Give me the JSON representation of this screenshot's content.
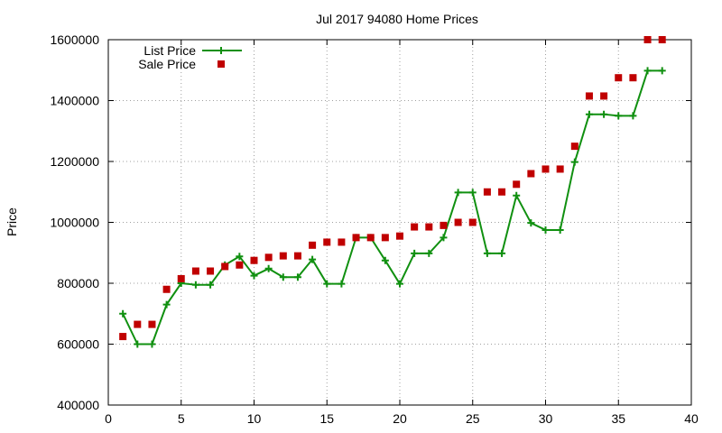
{
  "chart_data": {
    "type": "scatter",
    "title": "Jul 2017 94080 Home Prices",
    "xlabel": "",
    "ylabel": "Price",
    "xlim": [
      0,
      40
    ],
    "ylim": [
      400000,
      1600000
    ],
    "x_ticks": [
      0,
      5,
      10,
      15,
      20,
      25,
      30,
      35,
      40
    ],
    "y_ticks": [
      400000,
      600000,
      800000,
      1000000,
      1200000,
      1400000,
      1600000
    ],
    "grid": true,
    "legend_position": "top-left",
    "series": [
      {
        "name": "List Price",
        "style": "line-with-plus-markers",
        "color": "#109010",
        "x": [
          1,
          2,
          3,
          4,
          5,
          6,
          7,
          8,
          9,
          10,
          11,
          12,
          13,
          14,
          15,
          16,
          17,
          18,
          19,
          20,
          21,
          22,
          23,
          24,
          25,
          26,
          27,
          28,
          29,
          30,
          31,
          32,
          33,
          34,
          35,
          36,
          37,
          38
        ],
        "y": [
          700000,
          600000,
          600000,
          730000,
          800000,
          795000,
          795000,
          860000,
          888000,
          825000,
          848000,
          820000,
          820000,
          878000,
          798000,
          798000,
          950000,
          950000,
          875000,
          798000,
          898000,
          898000,
          950000,
          1098000,
          1098000,
          898000,
          898000,
          1088000,
          998000,
          975000,
          975000,
          1198000,
          1355000,
          1355000,
          1350000,
          1350000,
          1498000,
          1498000
        ]
      },
      {
        "name": "Sale Price",
        "style": "square-markers",
        "color": "#c00000",
        "x": [
          1,
          2,
          3,
          4,
          5,
          6,
          7,
          8,
          9,
          10,
          11,
          12,
          13,
          14,
          15,
          16,
          17,
          18,
          19,
          20,
          21,
          22,
          23,
          24,
          25,
          26,
          27,
          28,
          29,
          30,
          31,
          32,
          33,
          34,
          35,
          36,
          37,
          38
        ],
        "y": [
          625000,
          665000,
          665000,
          780000,
          815000,
          840000,
          840000,
          855000,
          860000,
          875000,
          885000,
          890000,
          890000,
          925000,
          935000,
          935000,
          950000,
          950000,
          950000,
          955000,
          985000,
          985000,
          990000,
          1000000,
          1000000,
          1100000,
          1100000,
          1125000,
          1160000,
          1175000,
          1175000,
          1250000,
          1415000,
          1415000,
          1475000,
          1475000,
          1600000,
          1600000
        ]
      }
    ]
  }
}
